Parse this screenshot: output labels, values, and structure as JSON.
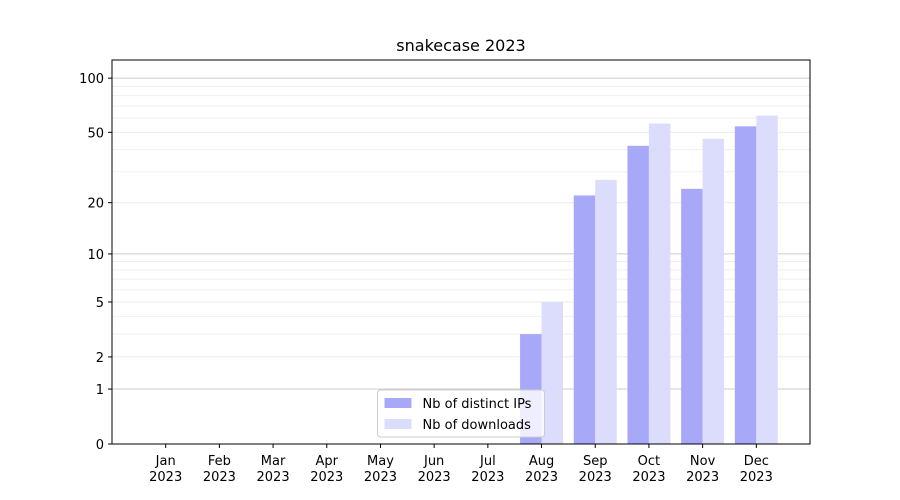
{
  "chart_data": {
    "type": "bar",
    "title": "snakecase 2023",
    "categories": [
      "Jan 2023",
      "Feb 2023",
      "Mar 2023",
      "Apr 2023",
      "May 2023",
      "Jun 2023",
      "Jul 2023",
      "Aug 2023",
      "Sep 2023",
      "Oct 2023",
      "Nov 2023",
      "Dec 2023"
    ],
    "series": [
      {
        "name": "Nb of distinct IPs",
        "color": "#a8a8f9",
        "values": [
          0,
          0,
          0,
          0,
          0,
          0,
          0,
          3,
          22,
          42,
          24,
          54
        ]
      },
      {
        "name": "Nb of downloads",
        "color": "#dcdcfc",
        "values": [
          0,
          0,
          0,
          0,
          0,
          0,
          0,
          5,
          27,
          56,
          46,
          62
        ]
      }
    ],
    "yscale": "log1p",
    "ylim": [
      0,
      126
    ],
    "yticks": [
      0,
      1,
      2,
      5,
      10,
      20,
      50,
      100
    ],
    "yticks_minor": [
      3,
      4,
      6,
      7,
      8,
      9,
      30,
      40,
      60,
      70,
      80,
      90
    ],
    "grid": true,
    "legend": "lower center"
  }
}
